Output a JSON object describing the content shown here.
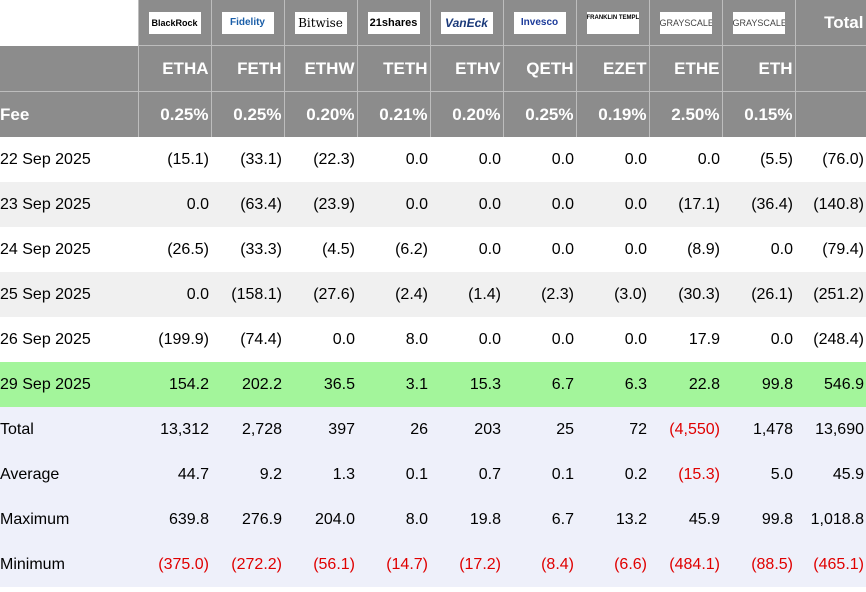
{
  "logos": [
    {
      "name": "blackrock-logo",
      "text": "BlackRock",
      "cls": ""
    },
    {
      "name": "fidelity-logo",
      "text": "Fidelity",
      "cls": "fid"
    },
    {
      "name": "bitwise-logo",
      "text": "Bitwise",
      "cls": "bit"
    },
    {
      "name": "21shares-logo",
      "text": "21shares",
      "cls": "tw"
    },
    {
      "name": "vaneck-logo",
      "text": "VanEck",
      "cls": "van"
    },
    {
      "name": "invesco-logo",
      "text": "Invesco",
      "cls": "inv"
    },
    {
      "name": "franklin-templeton-logo",
      "text": "FRANKLIN TEMPLETON",
      "cls": "frk"
    },
    {
      "name": "grayscale-logo",
      "text": "GRAYSCALE",
      "cls": "gs"
    },
    {
      "name": "grayscale-mini-logo",
      "text": "GRAYSCALE",
      "cls": "gs"
    }
  ],
  "total_header": "Total",
  "tickers": [
    "ETHA",
    "FETH",
    "ETHW",
    "TETH",
    "ETHV",
    "QETH",
    "EZET",
    "ETHE",
    "ETH"
  ],
  "fee_label": "Fee",
  "fees": [
    "0.25%",
    "0.25%",
    "0.20%",
    "0.21%",
    "0.20%",
    "0.25%",
    "0.19%",
    "2.50%",
    "0.15%"
  ],
  "rows": [
    {
      "label": "22 Sep 2025",
      "values": [
        "(15.1)",
        "(33.1)",
        "(22.3)",
        "0.0",
        "0.0",
        "0.0",
        "0.0",
        "0.0",
        "(5.5)",
        "(76.0)"
      ]
    },
    {
      "label": "23 Sep 2025",
      "values": [
        "0.0",
        "(63.4)",
        "(23.9)",
        "0.0",
        "0.0",
        "0.0",
        "0.0",
        "(17.1)",
        "(36.4)",
        "(140.8)"
      ]
    },
    {
      "label": "24 Sep 2025",
      "values": [
        "(26.5)",
        "(33.3)",
        "(4.5)",
        "(6.2)",
        "0.0",
        "0.0",
        "0.0",
        "(8.9)",
        "0.0",
        "(79.4)"
      ]
    },
    {
      "label": "25 Sep 2025",
      "values": [
        "0.0",
        "(158.1)",
        "(27.6)",
        "(2.4)",
        "(1.4)",
        "(2.3)",
        "(3.0)",
        "(30.3)",
        "(26.1)",
        "(251.2)"
      ]
    },
    {
      "label": "26 Sep 2025",
      "values": [
        "(199.9)",
        "(74.4)",
        "0.0",
        "8.0",
        "0.0",
        "0.0",
        "0.0",
        "17.9",
        "0.0",
        "(248.4)"
      ]
    },
    {
      "label": "29 Sep 2025",
      "values": [
        "154.2",
        "202.2",
        "36.5",
        "3.1",
        "15.3",
        "6.7",
        "6.3",
        "22.8",
        "99.8",
        "546.9"
      ],
      "highlight": true
    }
  ],
  "stats": [
    {
      "label": "Total",
      "values": [
        "13,312",
        "2,728",
        "397",
        "26",
        "203",
        "25",
        "72",
        "(4,550)",
        "1,478",
        "13,690"
      ]
    },
    {
      "label": "Average",
      "values": [
        "44.7",
        "9.2",
        "1.3",
        "0.1",
        "0.7",
        "0.1",
        "0.2",
        "(15.3)",
        "5.0",
        "45.9"
      ]
    },
    {
      "label": "Maximum",
      "values": [
        "639.8",
        "276.9",
        "204.0",
        "8.0",
        "19.8",
        "6.7",
        "13.2",
        "45.9",
        "99.8",
        "1,018.8"
      ]
    },
    {
      "label": "Minimum",
      "values": [
        "(375.0)",
        "(272.2)",
        "(56.1)",
        "(14.7)",
        "(17.2)",
        "(8.4)",
        "(6.6)",
        "(484.1)",
        "(88.5)",
        "(465.1)"
      ]
    }
  ]
}
